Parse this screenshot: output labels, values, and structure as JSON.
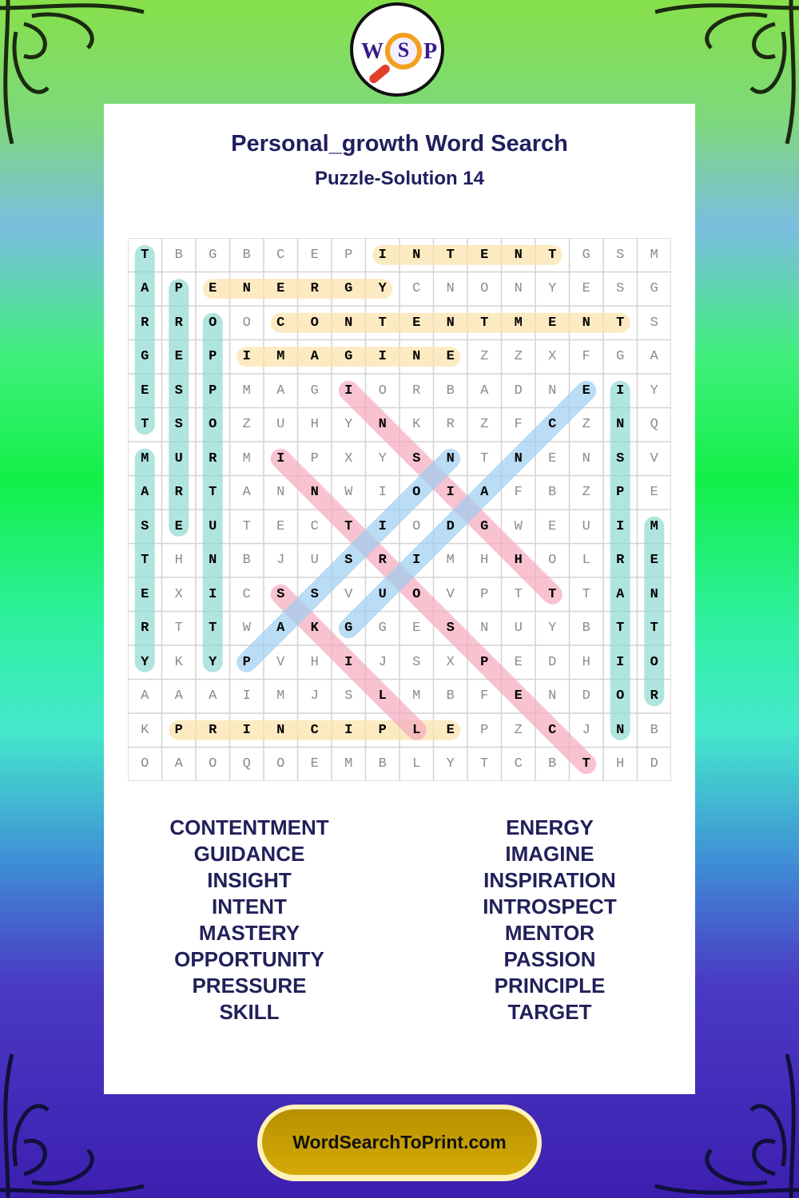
{
  "header": {
    "logo_text": "WSP",
    "title": "Personal_growth Word Search",
    "subtitle": "Puzzle-Solution 14"
  },
  "grid": {
    "rows": [
      "TBGBCEPINTENTGSM",
      "APENERGYCNONYESG",
      "RROOCONTENTMENTS",
      "GEPIMAGINEZZXFGA",
      "ESPMAGIORBADNEIY",
      "TSOZUHYNKRZFCZNQ",
      "MURMIPXYSNTNENSV",
      "ARTANNWIOIAFBZPE",
      "SEUTECTIODGWEUIM",
      "THNBJUSRIMHHOLRE",
      "EXICSSVUOVPTTTAN",
      "RTTWAKGGESNUYBTT",
      "YKYPVHIJSXPEDHIO",
      "AAAIMJSLMBFENDOR",
      "KPRINCIPLEPZCJNB",
      "OAOQOEMBLYTCBTHD"
    ],
    "solutions": [
      {
        "word": "INTENT",
        "start": [
          0,
          7
        ],
        "end": [
          0,
          12
        ],
        "color": "#fbe3a8"
      },
      {
        "word": "ENERGY",
        "start": [
          1,
          2
        ],
        "end": [
          1,
          7
        ],
        "color": "#fbe3a8"
      },
      {
        "word": "CONTENTMENT",
        "start": [
          2,
          4
        ],
        "end": [
          2,
          14
        ],
        "color": "#fbe3a8"
      },
      {
        "word": "IMAGINE",
        "start": [
          3,
          3
        ],
        "end": [
          3,
          9
        ],
        "color": "#fbe3a8"
      },
      {
        "word": "PRINCIPLE",
        "start": [
          14,
          1
        ],
        "end": [
          14,
          9
        ],
        "color": "#fbe3a8"
      },
      {
        "word": "TARGET",
        "start": [
          0,
          0
        ],
        "end": [
          5,
          0
        ],
        "color": "#8fd8d2"
      },
      {
        "word": "PRESSURE",
        "start": [
          1,
          1
        ],
        "end": [
          8,
          1
        ],
        "color": "#8fd8d2"
      },
      {
        "word": "OPPORTUNITY",
        "start": [
          2,
          2
        ],
        "end": [
          12,
          2
        ],
        "color": "#8fd8d2"
      },
      {
        "word": "MASTERY",
        "start": [
          6,
          0
        ],
        "end": [
          12,
          0
        ],
        "color": "#8fd8d2"
      },
      {
        "word": "INSPIRATION",
        "start": [
          4,
          14
        ],
        "end": [
          14,
          14
        ],
        "color": "#8fd8d2"
      },
      {
        "word": "MENTOR",
        "start": [
          8,
          15
        ],
        "end": [
          13,
          15
        ],
        "color": "#8fd8d2"
      },
      {
        "word": "INSIGHT",
        "start": [
          4,
          6
        ],
        "end": [
          10,
          12
        ],
        "color": "#f5a8bd"
      },
      {
        "word": "INTROSPECT",
        "start": [
          6,
          4
        ],
        "end": [
          15,
          13
        ],
        "color": "#f5a8bd"
      },
      {
        "word": "SKILL",
        "start": [
          10,
          4
        ],
        "end": [
          14,
          8
        ],
        "color": "#f5a8bd"
      },
      {
        "word": "PASSION",
        "start": [
          12,
          3
        ],
        "end": [
          6,
          9
        ],
        "color": "#9ccdf0"
      },
      {
        "word": "GUIDANCE",
        "start": [
          11,
          6
        ],
        "end": [
          4,
          13
        ],
        "color": "#9ccdf0"
      }
    ]
  },
  "word_list": {
    "left": [
      "CONTENTMENT",
      "GUIDANCE",
      "INSIGHT",
      "INTENT",
      "MASTERY",
      "OPPORTUNITY",
      "PRESSURE",
      "SKILL"
    ],
    "right": [
      "ENERGY",
      "IMAGINE",
      "INSPIRATION",
      "INTROSPECT",
      "MENTOR",
      "PASSION",
      "PRINCIPLE",
      "TARGET"
    ]
  },
  "footer": {
    "site": "WordSearchToPrint.com"
  },
  "colors": {
    "title": "#1f1f5e",
    "footer_gold": "#c9a000"
  }
}
